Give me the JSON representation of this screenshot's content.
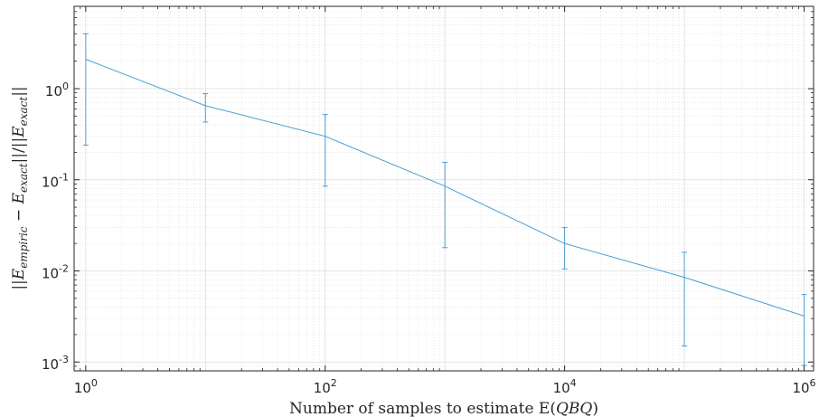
{
  "chart_data": {
    "type": "line",
    "title": "",
    "xlabel": "Number of samples to estimate E(QBQ)",
    "xlabel_parts": {
      "text": "Number of samples to estimate E(",
      "math": "QBQ",
      "close": ")"
    },
    "ylabel": "||E_empiric − E_exact||/||E_exact||",
    "ylabel_parts": {
      "E": "E",
      "sub_empiric": "empiric",
      "minus": " − ",
      "sub_exact": "exact"
    },
    "x_scale": "log",
    "y_scale": "log",
    "xlim": [
      0.8,
      1200000
    ],
    "ylim": [
      0.0008,
      8
    ],
    "grid": true,
    "x_ticks": [
      {
        "value": 1,
        "base": "10",
        "exp": "0"
      },
      {
        "value": 100,
        "base": "10",
        "exp": "2"
      },
      {
        "value": 10000,
        "base": "10",
        "exp": "4"
      },
      {
        "value": 1000000,
        "base": "10",
        "exp": "6"
      }
    ],
    "y_ticks": [
      {
        "value": 0.001,
        "base": "10",
        "exp": "-3"
      },
      {
        "value": 0.01,
        "base": "10",
        "exp": "-2"
      },
      {
        "value": 0.1,
        "base": "10",
        "exp": "-1"
      },
      {
        "value": 1,
        "base": "10",
        "exp": "0"
      }
    ],
    "series": [
      {
        "color": "#4a9fd4",
        "x": [
          1,
          10,
          100,
          1000,
          10000,
          100000,
          1000000
        ],
        "y": [
          2.1,
          0.65,
          0.3,
          0.085,
          0.02,
          0.0085,
          0.0032
        ],
        "y_lower": [
          0.24,
          0.43,
          0.085,
          0.018,
          0.0105,
          0.0015,
          0.00092
        ],
        "y_upper": [
          4.0,
          0.88,
          0.52,
          0.155,
          0.03,
          0.016,
          0.0055
        ]
      }
    ]
  }
}
